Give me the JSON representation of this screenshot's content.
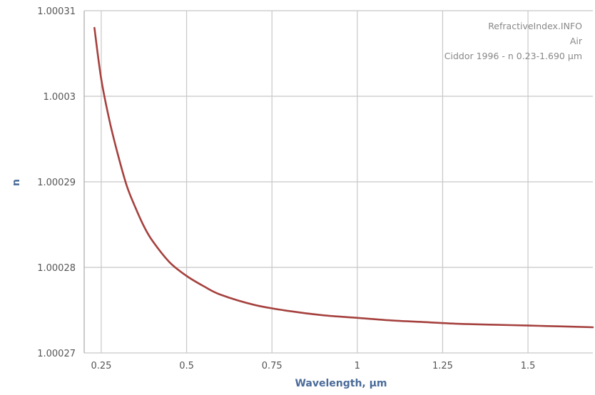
{
  "chart_data": {
    "type": "line",
    "title": "",
    "xlabel": "Wavelength, µm",
    "ylabel": "n",
    "xlim": [
      0.2,
      1.69
    ],
    "ylim": [
      1.00027,
      1.00031
    ],
    "x_ticks": [
      {
        "value": 0.25,
        "label": "0.25"
      },
      {
        "value": 0.5,
        "label": "0.5"
      },
      {
        "value": 0.75,
        "label": "0.75"
      },
      {
        "value": 1.0,
        "label": "1"
      },
      {
        "value": 1.25,
        "label": "1.25"
      },
      {
        "value": 1.5,
        "label": "1.5"
      }
    ],
    "y_ticks": [
      {
        "value": 1.00027,
        "label": "1.00027"
      },
      {
        "value": 1.00028,
        "label": "1.00028"
      },
      {
        "value": 1.00029,
        "label": "1.00029"
      },
      {
        "value": 1.0003,
        "label": "1.0003"
      },
      {
        "value": 1.00031,
        "label": "1.00031"
      }
    ],
    "grid": true,
    "annotations": [
      "RefractiveIndex.INFO",
      "Air",
      "Ciddor 1996 - n 0.23-1.690 µm"
    ],
    "series": [
      {
        "name": "",
        "color": "#a5413e",
        "x": [
          0.23,
          0.25,
          0.275,
          0.3,
          0.325,
          0.35,
          0.375,
          0.4,
          0.45,
          0.5,
          0.55,
          0.6,
          0.7,
          0.8,
          0.9,
          1.0,
          1.1,
          1.2,
          1.3,
          1.4,
          1.5,
          1.6,
          1.69
        ],
        "y": [
          1.000308,
          1.000302,
          1.000297,
          1.000293,
          1.0002895,
          1.000287,
          1.0002848,
          1.0002831,
          1.0002806,
          1.000279,
          1.0002778,
          1.0002768,
          1.0002756,
          1.0002749,
          1.0002744,
          1.0002741,
          1.0002738,
          1.0002736,
          1.0002734,
          1.0002733,
          1.0002732,
          1.0002731,
          1.000273
        ]
      }
    ]
  },
  "colors": {
    "grid": "#c8c8c8",
    "axis": "#aaaaaa",
    "axis_title": "#4a6b99",
    "tick_text": "#555555",
    "annotation_text": "#888888",
    "line": "#a5413e"
  }
}
